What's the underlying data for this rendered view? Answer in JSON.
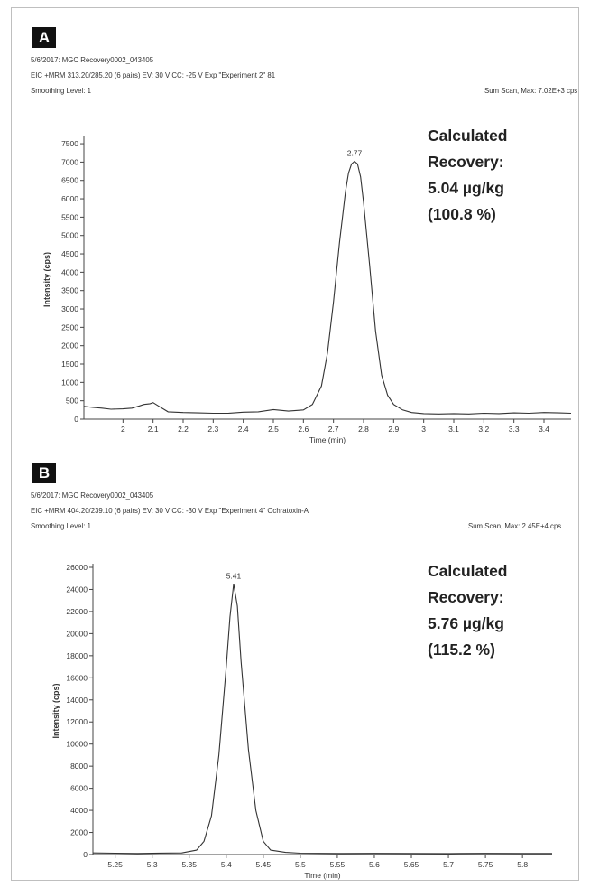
{
  "panels": [
    {
      "badge": "A",
      "meta": [
        "5/6/2017: MGC Recovery0002_043405",
        "EIC +MRM 313.20/285.20 (6 pairs) EV: 30 V CC: -25 V Exp \"Experiment 2\" 81",
        "Smoothing Level: 1"
      ],
      "scan_info": "Sum Scan, Max: 7.02E+3 cps",
      "callout": [
        "Calculated",
        "Recovery:",
        "5.04 µg/kg",
        "(100.8 %)"
      ]
    },
    {
      "badge": "B",
      "meta": [
        "5/6/2017: MGC Recovery0002_043405",
        "EIC +MRM 404.20/239.10 (6 pairs) EV: 30 V CC: -30 V Exp \"Experiment 4\" Ochratoxin-A",
        "Smoothing Level: 1"
      ],
      "scan_info": "Sum Scan, Max: 2.45E+4 cps",
      "callout": [
        "Calculated",
        "Recovery:",
        "5.76 µg/kg",
        "(115.2 %)"
      ]
    }
  ],
  "chart_data": [
    {
      "type": "line",
      "xlabel": "Time (min)",
      "ylabel": "Intensity (cps)",
      "xlim": [
        1.87,
        3.49
      ],
      "ylim": [
        0,
        7600
      ],
      "xticks": [
        2,
        2.1,
        2.2,
        2.3,
        2.4,
        2.5,
        2.6,
        2.7,
        2.8,
        2.9,
        3,
        3.1,
        3.2,
        3.3,
        3.4
      ],
      "yticks": [
        0,
        500,
        1000,
        1500,
        2000,
        2500,
        3000,
        3500,
        4000,
        4500,
        5000,
        5500,
        6000,
        6500,
        7000,
        7500
      ],
      "peak_label": "2.77",
      "peak": {
        "x": 2.77,
        "y": 7020
      },
      "series": [
        {
          "x": [
            1.87,
            1.9,
            1.93,
            1.96,
            2.0,
            2.03,
            2.05,
            2.07,
            2.09,
            2.1,
            2.12,
            2.15,
            2.2,
            2.25,
            2.3,
            2.35,
            2.4,
            2.45,
            2.5,
            2.55,
            2.6,
            2.63,
            2.66,
            2.68,
            2.7,
            2.72,
            2.74,
            2.75,
            2.76,
            2.77,
            2.78,
            2.79,
            2.8,
            2.82,
            2.84,
            2.86,
            2.88,
            2.9,
            2.93,
            2.96,
            3.0,
            3.05,
            3.1,
            3.15,
            3.2,
            3.25,
            3.3,
            3.35,
            3.4,
            3.45,
            3.49
          ],
          "y": [
            350,
            320,
            300,
            270,
            280,
            300,
            350,
            400,
            420,
            450,
            350,
            200,
            180,
            170,
            160,
            160,
            190,
            200,
            260,
            220,
            250,
            400,
            900,
            1800,
            3200,
            4800,
            6200,
            6700,
            6950,
            7020,
            6950,
            6600,
            5900,
            4200,
            2400,
            1200,
            650,
            400,
            250,
            180,
            150,
            140,
            150,
            140,
            160,
            150,
            170,
            160,
            180,
            170,
            160
          ]
        }
      ]
    },
    {
      "type": "line",
      "xlabel": "Time (min)",
      "ylabel": "Intensity (cps)",
      "xlim": [
        5.22,
        5.84
      ],
      "ylim": [
        0,
        26000
      ],
      "xticks": [
        5.25,
        5.3,
        5.35,
        5.4,
        5.45,
        5.5,
        5.55,
        5.6,
        5.65,
        5.7,
        5.75,
        5.8
      ],
      "yticks": [
        0,
        2000,
        4000,
        6000,
        8000,
        10000,
        12000,
        14000,
        16000,
        18000,
        20000,
        22000,
        24000,
        26000
      ],
      "peak_label": "5.41",
      "peak": {
        "x": 5.41,
        "y": 24500
      },
      "series": [
        {
          "x": [
            5.22,
            5.25,
            5.28,
            5.31,
            5.34,
            5.36,
            5.37,
            5.38,
            5.39,
            5.4,
            5.405,
            5.41,
            5.415,
            5.42,
            5.43,
            5.44,
            5.45,
            5.46,
            5.48,
            5.5,
            5.55,
            5.6,
            5.65,
            5.7,
            5.75,
            5.8,
            5.84
          ],
          "y": [
            150,
            120,
            100,
            130,
            150,
            400,
            1200,
            3500,
            9000,
            17000,
            21500,
            24500,
            22500,
            17500,
            9500,
            4000,
            1200,
            400,
            200,
            120,
            100,
            110,
            100,
            90,
            110,
            100,
            100
          ]
        }
      ]
    }
  ]
}
